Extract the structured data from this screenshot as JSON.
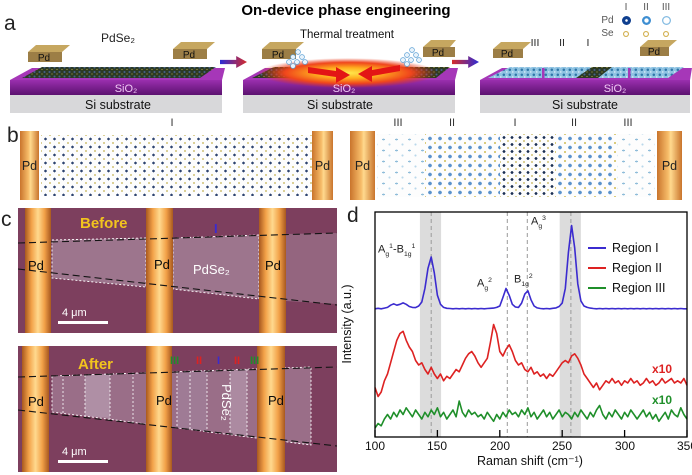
{
  "title": "On-device phase engineering",
  "panel_letters": {
    "a": "a",
    "b": "b",
    "c": "c",
    "d": "d"
  },
  "labels": {
    "pd": "Pd",
    "se": "Se",
    "pdse2": "PdSe₂",
    "sio2": "SiO₂",
    "si_substrate": "Si substrate",
    "thermal": "Thermal treatment",
    "before": "Before",
    "after": "After",
    "scalebar": "4 μm",
    "region1": "I",
    "region2": "II",
    "region3": "III"
  },
  "colors": {
    "region1_blue": "#3b2bcf",
    "region2_red": "#dd2222",
    "region3_green": "#1f8f2a",
    "before_after_yellow": "#f2c41d",
    "electrode_orange": "#f2a148",
    "sio2_purple": "#8a2096",
    "microscope_maroon": "#7d3f5e"
  },
  "chart_data": {
    "type": "line",
    "xlabel": "Raman shift (cm⁻¹)",
    "ylabel": "Intensity (a.u.)",
    "xlim": [
      100,
      350
    ],
    "x_ticks": [
      100,
      150,
      200,
      250,
      300,
      350
    ],
    "x_start": 100,
    "x_step": 2.5,
    "grid": false,
    "legend_position": "upper right",
    "dashed_lines_cm": [
      145,
      206,
      222,
      257
    ],
    "shaded_bands_cm": [
      [
        136,
        153
      ],
      [
        248,
        265
      ]
    ],
    "peak_labels": [
      {
        "html": "A<sub>g</sub><sup>1</sup>-B<sub>1g</sub><sup>1</sup>",
        "cm": 145
      },
      {
        "html": "A<sub>g</sub><sup>2</sup>",
        "cm": 206
      },
      {
        "html": "B<sub>1g</sub><sup>2</sup>",
        "cm": 222
      },
      {
        "html": "A<sub>g</sub><sup>3</sup>",
        "cm": 257
      }
    ],
    "series": [
      {
        "name": "Region I",
        "color": "#3b2bcf",
        "scale_label": "",
        "values": [
          57,
          57.2,
          57,
          57.3,
          57.6,
          58.6,
          59.2,
          58.6,
          59,
          59.6,
          59,
          58,
          57.6,
          57.5,
          58.2,
          60,
          66,
          75,
          80,
          73,
          63,
          59,
          57.6,
          57.2,
          57.1,
          57,
          57.1,
          57,
          57.1,
          57,
          57.1,
          57,
          57.1,
          57,
          57.1,
          57,
          57.1,
          57.2,
          57.3,
          57.6,
          58.2,
          62,
          66,
          63,
          59,
          57.8,
          57.6,
          59.5,
          63.5,
          65,
          61,
          58.2,
          57.4,
          57.1,
          57,
          57.1,
          57,
          57.2,
          57.4,
          58,
          59.5,
          66,
          82,
          94,
          84,
          68,
          60.5,
          58.2,
          57.6,
          57.3,
          57.1,
          57,
          57.1,
          57,
          57.1,
          57,
          57.1,
          57,
          57.1,
          57,
          57.1,
          57,
          57.1,
          57,
          57.1,
          57,
          57.1,
          57,
          57.1,
          57,
          57.1,
          57,
          57.1,
          57,
          57.1,
          57,
          57.1,
          57,
          57.1,
          57,
          57
        ]
      },
      {
        "name": "Region II",
        "color": "#dd2222",
        "scale_label": "x10",
        "values": [
          22,
          18,
          20,
          25,
          28,
          33,
          38,
          43,
          46,
          47,
          43,
          40,
          38,
          34,
          32,
          33,
          30,
          28,
          31,
          28,
          26,
          28,
          25,
          27,
          26,
          28,
          30,
          29,
          32,
          35,
          37,
          38,
          36,
          33,
          31,
          33,
          35,
          42,
          50,
          46,
          38,
          36,
          39,
          41,
          38,
          34,
          32,
          33,
          30,
          29,
          31,
          28,
          29,
          27,
          28,
          26,
          28,
          27,
          29,
          31,
          33,
          34,
          33,
          36,
          37,
          35,
          32,
          28,
          26,
          24,
          22,
          24,
          21,
          23,
          25,
          24,
          26,
          24,
          25,
          23,
          25,
          24,
          26,
          24,
          25,
          23,
          24,
          26,
          24,
          25,
          23,
          24,
          26,
          24,
          25,
          26,
          24,
          25,
          24,
          26,
          23
        ]
      },
      {
        "name": "Region III",
        "color": "#1f8f2a",
        "scale_label": "x10",
        "values": [
          4,
          6,
          5,
          8,
          10,
          8,
          11,
          9,
          12,
          10,
          13,
          11,
          9,
          12,
          10,
          8,
          11,
          9,
          12,
          10,
          13,
          9,
          11,
          8,
          10,
          12,
          9,
          16,
          11,
          9,
          12,
          10,
          11,
          9,
          10,
          8,
          11,
          9,
          7,
          10,
          8,
          11,
          9,
          12,
          10,
          11,
          9,
          12,
          10,
          13,
          9,
          11,
          8,
          10,
          12,
          9,
          11,
          8,
          10,
          12,
          9,
          11,
          10,
          8,
          11,
          9,
          12,
          10,
          8,
          11,
          9,
          12,
          14,
          10,
          8,
          11,
          9,
          12,
          10,
          8,
          11,
          9,
          12,
          10,
          8,
          10,
          12,
          9,
          11,
          8,
          10,
          7,
          9,
          11,
          8,
          12,
          10,
          9,
          13,
          10,
          8
        ]
      }
    ]
  }
}
